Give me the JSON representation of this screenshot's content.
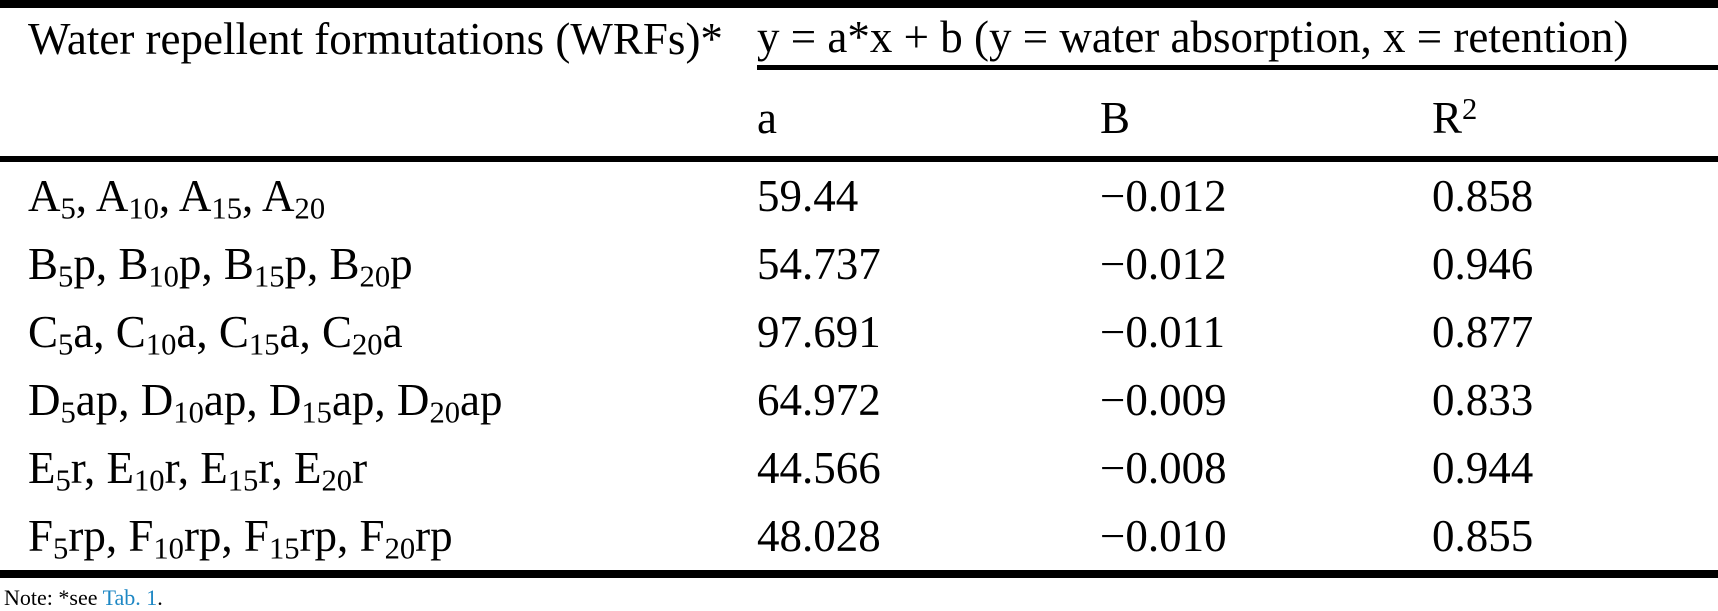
{
  "table": {
    "col1_header": "Water repellent formutations (WRFs)*",
    "equation_header": "y = a*x + b (y = water absorption, x = retention)",
    "column_headers": {
      "a": "a",
      "b": "B",
      "r2": "R^{2}"
    },
    "rows": [
      {
        "formulations": "A_{5}, A_{10}, A_{15}, A_{20}",
        "a": "59.44",
        "b": "−0.012",
        "r2": "0.858"
      },
      {
        "formulations": "B_{5}p, B_{10}p, B_{15}p, B_{20}p",
        "a": "54.737",
        "b": "−0.012",
        "r2": "0.946"
      },
      {
        "formulations": "C_{5}a, C_{10}a, C_{15}a, C_{20}a",
        "a": "97.691",
        "b": "−0.011",
        "r2": "0.877"
      },
      {
        "formulations": "D_{5}ap, D_{10}ap, D_{15}ap, D_{20}ap",
        "a": "64.972",
        "b": "−0.009",
        "r2": "0.833"
      },
      {
        "formulations": "E_{5}r, E_{10}r, E_{15}r, E_{20}r",
        "a": "44.566",
        "b": "−0.008",
        "r2": "0.944"
      },
      {
        "formulations": "F_{5}rp, F_{10}rp, F_{15}rp, F_{20}rp",
        "a": "48.028",
        "b": "−0.010",
        "r2": "0.855"
      }
    ]
  },
  "note": {
    "prefix": "Note: *see ",
    "link_text": "Tab. 1",
    "suffix": "."
  },
  "colors": {
    "text": "#000000",
    "background": "#ffffff",
    "link": "#1d87c4",
    "rule": "#000000"
  }
}
